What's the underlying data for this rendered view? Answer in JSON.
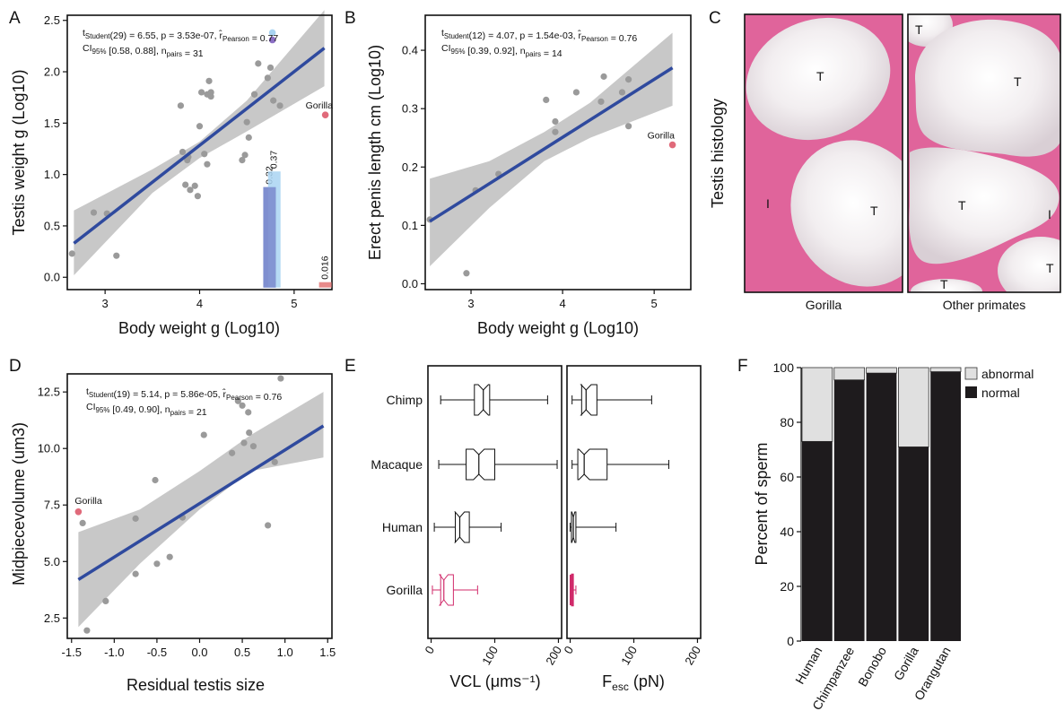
{
  "panels": {
    "A": "A",
    "B": "B",
    "C": "C",
    "D": "D",
    "E": "E",
    "F": "F"
  },
  "colors": {
    "regression": "#2f4a9e",
    "ci_band": "#c8c8c8",
    "point": "#9a9a9a",
    "gorilla": "#e06a7a",
    "histology_pink": "#e0649b",
    "gorilla_box": "#d02a6a",
    "bar_normal": "#1e1b1d",
    "bar_abnormal": "#e0e0e0",
    "bar_inset_1": "#7f8fcf",
    "bar_inset_2": "#a9d4f2",
    "bar_inset_3": "#e88a8a"
  },
  "chart_data": [
    {
      "panel": "A",
      "type": "scatter",
      "xlabel": "Body weight g (Log10)",
      "ylabel": "Testis weight g (Log10)",
      "xlim": [
        2.6,
        5.4
      ],
      "ylim": [
        -0.12,
        2.55
      ],
      "xticks": [
        "3",
        "4",
        "5"
      ],
      "yticks": [
        "0.0",
        "0.5",
        "1.0",
        "1.5",
        "2.0",
        "2.5"
      ],
      "stats_line1": "tStudent(29) = 6.55, p = 3.53e-07, r̂Pearson = 0.77",
      "stats_line2": "CI95% [0.58, 0.88], npairs = 31",
      "stats_parts": {
        "t": "t",
        "t_sub": "Student",
        "t_rest": "(29) = 6.55, p = 3.53e-07, ",
        "r": "r̂",
        "r_sub": "Pearson",
        "r_rest": " = 0.77",
        "ci": "CI",
        "ci_sub": "95%",
        "ci_rest": " [0.58, 0.88], n",
        "n_sub": "pairs",
        "n_rest": " = 31"
      },
      "regression": [
        [
          2.67,
          0.33
        ],
        [
          5.32,
          2.23
        ]
      ],
      "ci_upper": [
        [
          2.67,
          0.65
        ],
        [
          3.5,
          1.05
        ],
        [
          4.0,
          1.32
        ],
        [
          4.5,
          1.72
        ],
        [
          5.32,
          2.6
        ]
      ],
      "ci_lower": [
        [
          2.67,
          0.02
        ],
        [
          3.5,
          0.82
        ],
        [
          4.0,
          1.16
        ],
        [
          4.5,
          1.42
        ],
        [
          5.32,
          1.86
        ]
      ],
      "points": [
        [
          2.65,
          0.23
        ],
        [
          2.88,
          0.63
        ],
        [
          3.02,
          0.62
        ],
        [
          3.12,
          0.21
        ],
        [
          3.8,
          1.67
        ],
        [
          3.82,
          1.22
        ],
        [
          3.85,
          0.9
        ],
        [
          3.87,
          1.14
        ],
        [
          3.9,
          0.85
        ],
        [
          3.88,
          1.17
        ],
        [
          3.95,
          0.89
        ],
        [
          3.98,
          0.79
        ],
        [
          4.0,
          1.47
        ],
        [
          4.02,
          1.8
        ],
        [
          4.05,
          1.2
        ],
        [
          4.08,
          1.1
        ],
        [
          4.08,
          1.78
        ],
        [
          4.1,
          1.91
        ],
        [
          4.12,
          1.8
        ],
        [
          4.12,
          1.76
        ],
        [
          4.45,
          1.14
        ],
        [
          4.48,
          1.19
        ],
        [
          4.5,
          1.51
        ],
        [
          4.52,
          1.36
        ],
        [
          4.58,
          1.78
        ],
        [
          4.62,
          2.08
        ],
        [
          4.72,
          1.94
        ],
        [
          4.75,
          2.04
        ],
        [
          4.78,
          1.72
        ],
        [
          4.85,
          1.67
        ],
        [
          4.58,
          1.78
        ]
      ],
      "gorilla_point": [
        5.33,
        1.58
      ],
      "gorilla_label": "Gorilla",
      "highlight_points": [
        [
          4.77,
          2.38
        ],
        [
          4.77,
          2.31
        ]
      ],
      "inset_bars": [
        {
          "x": 4.74,
          "value": 0.32,
          "label": "0.32"
        },
        {
          "x": 4.79,
          "value": 0.37,
          "label": "0.37"
        },
        {
          "x": 5.33,
          "value": 0.016,
          "label": "0.016"
        }
      ]
    },
    {
      "panel": "B",
      "type": "scatter",
      "xlabel": "Body weight g (Log10)",
      "ylabel": "Erect penis length cm (Log10)",
      "xlim": [
        2.5,
        5.4
      ],
      "ylim": [
        -0.01,
        0.46
      ],
      "xticks": [
        "3",
        "4",
        "5"
      ],
      "yticks": [
        "0.0",
        "0.1",
        "0.2",
        "0.3",
        "0.4"
      ],
      "stats_parts": {
        "t": "t",
        "t_sub": "Student",
        "t_rest": "(12) = 4.07, p = 1.54e-03, ",
        "r": "r̂",
        "r_sub": "Pearson",
        "r_rest": " = 0.76",
        "ci": "CI",
        "ci_sub": "95%",
        "ci_rest": " [0.39, 0.92], n",
        "n_sub": "pairs",
        "n_rest": " = 14"
      },
      "regression": [
        [
          2.55,
          0.107
        ],
        [
          5.2,
          0.37
        ]
      ],
      "ci_upper": [
        [
          2.55,
          0.18
        ],
        [
          3.2,
          0.21
        ],
        [
          3.8,
          0.26
        ],
        [
          4.3,
          0.31
        ],
        [
          5.2,
          0.43
        ]
      ],
      "ci_lower": [
        [
          2.55,
          0.03
        ],
        [
          3.2,
          0.13
        ],
        [
          3.8,
          0.21
        ],
        [
          4.3,
          0.25
        ],
        [
          5.2,
          0.305
        ]
      ],
      "points": [
        [
          2.55,
          0.11
        ],
        [
          2.95,
          0.018
        ],
        [
          3.05,
          0.16
        ],
        [
          3.3,
          0.188
        ],
        [
          3.82,
          0.315
        ],
        [
          3.92,
          0.278
        ],
        [
          3.92,
          0.26
        ],
        [
          4.15,
          0.328
        ],
        [
          4.42,
          0.312
        ],
        [
          4.45,
          0.355
        ],
        [
          4.65,
          0.328
        ],
        [
          4.72,
          0.35
        ],
        [
          4.72,
          0.27
        ]
      ],
      "gorilla_point": [
        5.2,
        0.238
      ],
      "gorilla_label": "Gorilla"
    },
    {
      "panel": "D",
      "type": "scatter",
      "xlabel": "Residual testis size",
      "ylabel": "Midpiecevolume (um3)",
      "xlim": [
        -1.55,
        1.55
      ],
      "ylim": [
        1.6,
        13.3
      ],
      "xticks": [
        "-1.5",
        "-1.0",
        "-0.5",
        "0.0",
        "0.5",
        "1.0",
        "1.5"
      ],
      "yticks": [
        "2.5",
        "5.0",
        "7.5",
        "10.0",
        "12.5"
      ],
      "stats_parts": {
        "t": "t",
        "t_sub": "Student",
        "t_rest": "(19) = 5.14, p = 5.86e-05, ",
        "r": "r̂",
        "r_sub": "Pearson",
        "r_rest": " = 0.76",
        "ci": "CI",
        "ci_sub": "95%",
        "ci_rest": " [0.49, 0.90], n",
        "n_sub": "pairs",
        "n_rest": " = 21"
      },
      "regression": [
        [
          -1.42,
          4.2
        ],
        [
          1.45,
          11.0
        ]
      ],
      "ci_upper": [
        [
          -1.42,
          6.3
        ],
        [
          -0.7,
          7.3
        ],
        [
          0.0,
          9.0
        ],
        [
          0.6,
          10.6
        ],
        [
          1.45,
          12.5
        ]
      ],
      "ci_lower": [
        [
          -1.42,
          2.1
        ],
        [
          -0.7,
          4.9
        ],
        [
          0.0,
          7.3
        ],
        [
          0.6,
          9.0
        ],
        [
          1.45,
          9.6
        ]
      ],
      "points": [
        [
          -1.37,
          6.7
        ],
        [
          -1.32,
          1.95
        ],
        [
          -1.1,
          3.25
        ],
        [
          -0.75,
          6.9
        ],
        [
          -0.75,
          4.45
        ],
        [
          -0.52,
          8.6
        ],
        [
          -0.5,
          4.9
        ],
        [
          -0.35,
          5.2
        ],
        [
          -0.2,
          6.95
        ],
        [
          0.05,
          10.6
        ],
        [
          0.38,
          9.8
        ],
        [
          0.45,
          12.1
        ],
        [
          0.5,
          11.9
        ],
        [
          0.52,
          10.25
        ],
        [
          0.57,
          11.6
        ],
        [
          0.58,
          10.7
        ],
        [
          0.63,
          10.1
        ],
        [
          0.8,
          6.6
        ],
        [
          0.88,
          9.4
        ],
        [
          0.95,
          13.1
        ]
      ],
      "gorilla_point": [
        -1.42,
        7.2
      ],
      "gorilla_label": "Gorilla"
    },
    {
      "panel": "E1",
      "type": "box",
      "xlabel": "VCL (μms⁻¹)",
      "xlim": [
        -5,
        205
      ],
      "xticks": [
        "0",
        "100",
        "200"
      ],
      "categories": [
        "Chimp",
        "Macaque",
        "Human",
        "Gorilla"
      ],
      "boxes": [
        {
          "min": 15,
          "q1": 68,
          "median": 82,
          "q3": 92,
          "max": 183
        },
        {
          "min": 12,
          "q1": 55,
          "median": 75,
          "q3": 100,
          "max": 198
        },
        {
          "min": 5,
          "q1": 38,
          "median": 45,
          "q3": 60,
          "max": 110
        },
        {
          "min": 2,
          "q1": 15,
          "median": 20,
          "q3": 35,
          "max": 73
        }
      ]
    },
    {
      "panel": "E2",
      "type": "box",
      "xlabel": "Fesc (pN)",
      "xlabel_parts": {
        "main": "F",
        "sub": "esc",
        "rest": " (pN)"
      },
      "xlim": [
        -5,
        205
      ],
      "xticks": [
        "0",
        "100",
        "200"
      ],
      "boxes": [
        {
          "min": 3,
          "q1": 18,
          "median": 25,
          "q3": 42,
          "max": 128
        },
        {
          "min": 3,
          "q1": 12,
          "median": 22,
          "q3": 58,
          "max": 155
        },
        {
          "min": 0,
          "q1": 2,
          "median": 5,
          "q3": 9,
          "max": 72
        },
        {
          "min": 0,
          "q1": 1,
          "median": 2,
          "q3": 4,
          "max": 9
        }
      ]
    },
    {
      "panel": "F",
      "type": "bar",
      "ylabel": "Percent of sperm",
      "ylim": [
        0,
        100
      ],
      "yticks": [
        "0",
        "20",
        "40",
        "60",
        "80",
        "100"
      ],
      "categories": [
        "Human",
        "Chimpanzee",
        "Bonobo",
        "Gorilla",
        "Orangutan"
      ],
      "series": [
        {
          "name": "normal",
          "values": [
            73,
            95.5,
            98,
            71,
            98.5
          ]
        },
        {
          "name": "abnormal",
          "values": [
            27,
            4.5,
            2,
            29,
            1.5
          ]
        }
      ],
      "legend": "top-right"
    }
  ],
  "histology": {
    "ylabel": "Testis histology",
    "left_caption": "Gorilla",
    "right_caption": "Other primates",
    "labels": {
      "T": "T",
      "I": "I"
    }
  }
}
